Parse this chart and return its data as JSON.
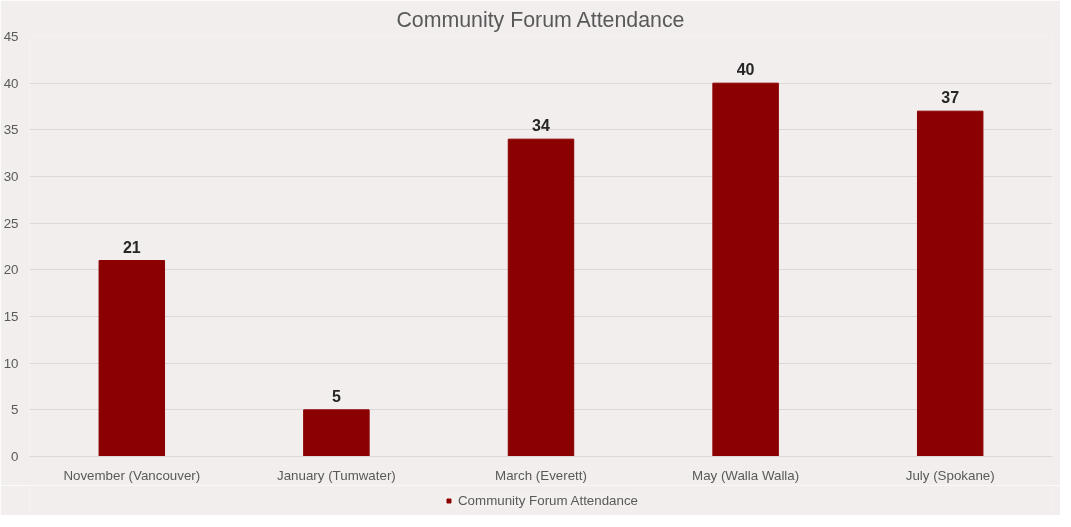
{
  "chart_data": {
    "type": "bar",
    "title": "Community Forum Attendance",
    "categories": [
      "November (Vancouver)",
      "January (Tumwater)",
      "March (Everett)",
      "May (Walla Walla)",
      "July (Spokane)"
    ],
    "series": [
      {
        "name": "Community Forum Attendance",
        "color": "#8b0000",
        "values": [
          21,
          5,
          34,
          40,
          37
        ]
      }
    ],
    "ylim": [
      0,
      45
    ],
    "yticks": [
      0,
      5,
      10,
      15,
      20,
      25,
      30,
      35,
      40,
      45
    ],
    "grid": "y",
    "legend": "bottom",
    "data_labels": true
  }
}
